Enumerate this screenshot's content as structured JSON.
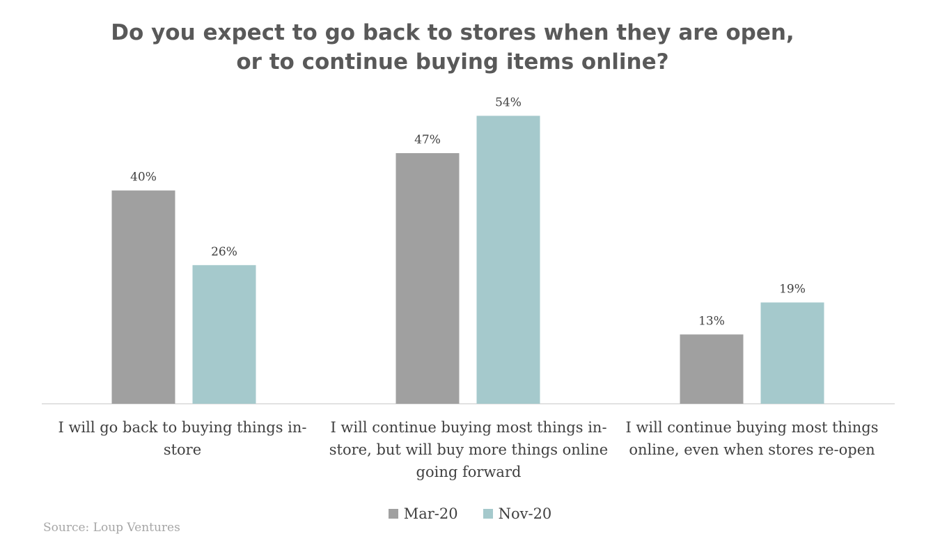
{
  "chart_data": {
    "type": "bar",
    "title": "Do you expect to go back to stores when they are open, or to continue buying items online?",
    "categories": [
      "I will go back to buying things in-store",
      "I will continue buying most things in-store, but will buy more things online going forward",
      "I will continue buying most things online, even when stores re-open"
    ],
    "series": [
      {
        "name": "Mar-20",
        "color": "#a0a0a0",
        "values": [
          40,
          47,
          13
        ],
        "labels": [
          "40%",
          "47%",
          "13%"
        ]
      },
      {
        "name": "Nov-20",
        "color": "#a5c9cc",
        "values": [
          26,
          54,
          19
        ],
        "labels": [
          "26%",
          "54%",
          "19%"
        ]
      }
    ],
    "ylim": [
      0,
      60
    ],
    "grid": false,
    "legend": "bottom"
  },
  "source": "Source: Loup Ventures"
}
